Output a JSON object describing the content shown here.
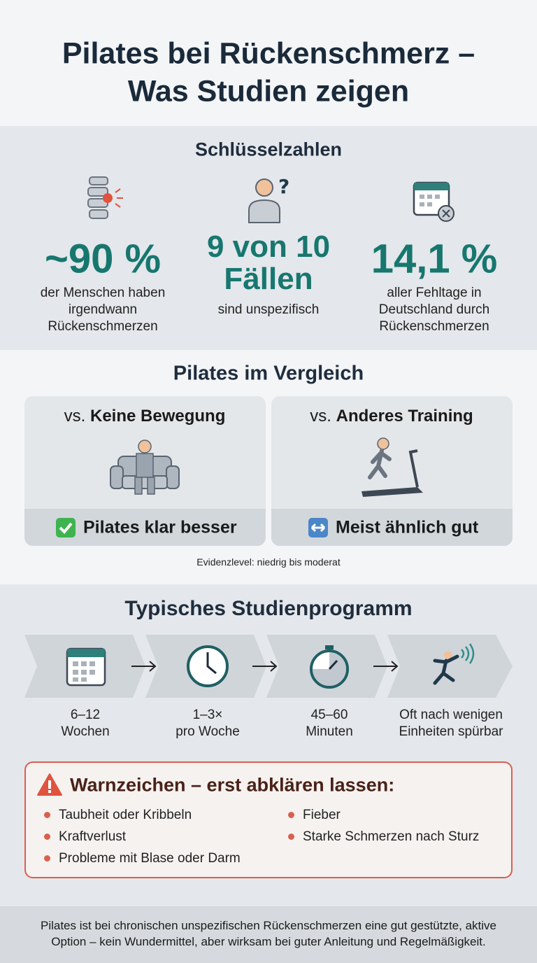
{
  "header": {
    "title_lines": [
      "Pilates bei Rückenschmerz –",
      "Was Studien zeigen"
    ]
  },
  "key_figures": {
    "heading": "Schlüsselzahlen",
    "items": [
      {
        "value_lines": [
          "~90 %"
        ],
        "description_lines": [
          "der Menschen haben",
          "irgendwann",
          "Rückenschmerzen"
        ]
      },
      {
        "value_lines": [
          "9 von 10",
          "Fällen"
        ],
        "description_lines": [
          "sind unspezifisch"
        ]
      },
      {
        "value_lines": [
          "14,1 %"
        ],
        "description_lines": [
          "aller Fehltage in",
          "Deutschland durch",
          "Rückenschmerzen"
        ]
      }
    ]
  },
  "comparison": {
    "heading": "Pilates im Vergleich",
    "cards": [
      {
        "prefix": "vs.",
        "label": "Keine Bewegung",
        "result": "Pilates klar besser"
      },
      {
        "prefix": "vs.",
        "label": "Anderes Training",
        "result": "Meist ähnlich gut"
      }
    ],
    "note": "Evidenzlevel: niedrig bis moderat"
  },
  "program": {
    "heading": "Typisches Studienprogramm",
    "steps": [
      {
        "lines": [
          "6–12",
          "Wochen"
        ]
      },
      {
        "lines": [
          "1–3×",
          "pro Woche"
        ]
      },
      {
        "lines": [
          "45–60",
          "Minuten"
        ]
      },
      {
        "lines": [
          "Oft nach wenigen",
          "Einheiten spürbar"
        ]
      }
    ]
  },
  "warning": {
    "title": "Warnzeichen – erst abklären lassen:",
    "items_left": [
      "Taubheit oder Kribbeln",
      "Kraftverlust",
      "Probleme mit Blase oder Darm"
    ],
    "items_right": [
      "Fieber",
      "Starke Schmerzen nach Sturz"
    ]
  },
  "footer": {
    "lines": [
      "Pilates ist bei chronischen unspezifischen Rückenschmerzen eine gut gestützte, aktive",
      "Option – kein Wundermittel, aber wirksam bei guter Anleitung und Regelmäßigkeit."
    ]
  }
}
